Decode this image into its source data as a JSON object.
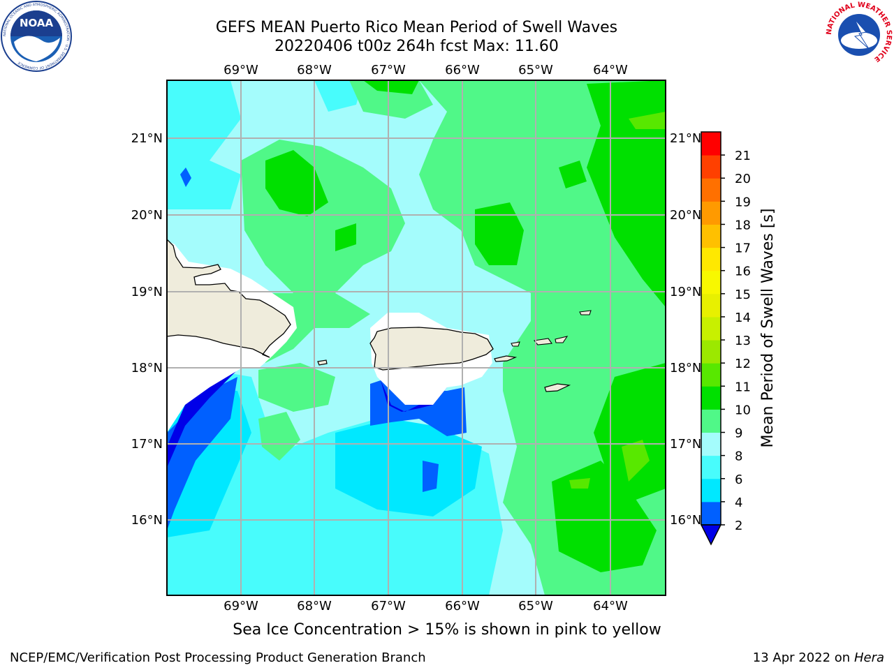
{
  "header": {
    "title_line1": "GEFS MEAN Puerto Rico Mean Period of Swell Waves",
    "title_line2": "20220406 t00z 264h fcst   Max: 11.60"
  },
  "map": {
    "lon_labels": [
      "69°W",
      "68°W",
      "67°W",
      "66°W",
      "65°W",
      "64°W"
    ],
    "lat_labels": [
      "21°N",
      "20°N",
      "19°N",
      "18°N",
      "17°N",
      "16°N"
    ]
  },
  "colorbar": {
    "label": "Mean Period of Swell Waves [s]",
    "ticks": [
      "2",
      "4",
      "6",
      "8",
      "9",
      "10",
      "11",
      "12",
      "13",
      "14",
      "15",
      "16",
      "17",
      "18",
      "19",
      "20",
      "21"
    ],
    "level_colors": [
      "#0060ff",
      "#00e8ff",
      "#48fcfc",
      "#a4fcfc",
      "#50f888",
      "#00e000",
      "#58e800",
      "#9ce800",
      "#c8f000",
      "#e8f000",
      "#f8f800",
      "#ffe800",
      "#ffc000",
      "#ff9a00",
      "#ff7000",
      "#ff4000",
      "#ff0000"
    ],
    "under_color": "#0000e8"
  },
  "logos": {
    "noaa": {
      "text": "NOAA",
      "ring_text": "NATIONAL OCEANIC AND ATMOSPHERIC ADMINISTRATION · U.S. DEPARTMENT OF COMMERCE"
    },
    "nws": {
      "ring_text": "NATIONAL WEATHER SERVICE"
    }
  },
  "caption": "Sea Ice Concentration > 15% is shown in pink to yellow",
  "footer": {
    "left": "NCEP/EMC/Verification Post Processing Product Generation Branch",
    "right_prefix": "13 Apr 2022 on ",
    "right_italic": "Hera"
  }
}
